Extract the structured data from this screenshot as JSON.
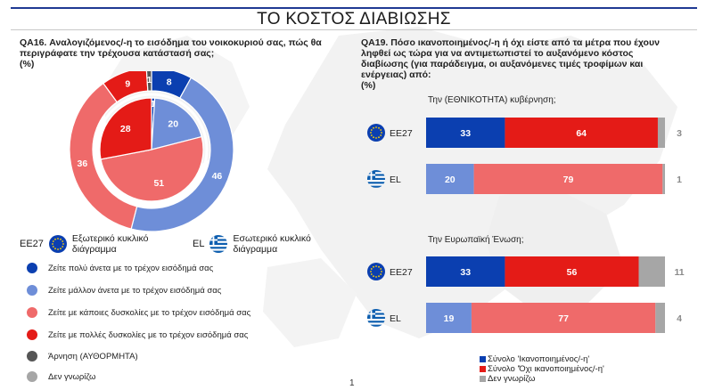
{
  "page": {
    "title": "ΤΟ ΚΟΣΤΟΣ ΔΙΑΒΙΩΣΗΣ",
    "page_number": "1"
  },
  "left": {
    "question_lines": [
      "QA16. Αναλογιζόμενος/-η το εισόδημα του νοικοκυριού σας, πώς θα",
      "περιγράφατε την τρέχουσα κατάστασή σας;",
      "(%)"
    ],
    "ring_labels": {
      "eu_code": "EE27",
      "eu_text": "Εξωτερικό κυκλικό διάγραμμα",
      "el_code": "EL",
      "el_text": "Εσωτερικό κυκλικό διάγραμμα"
    },
    "legend": [
      {
        "label": "Ζείτε πολύ άνετα με το τρέχον εισόδημά σας",
        "color": "#0b3fb0"
      },
      {
        "label": "Ζείτε μάλλον άνετα με το τρέχον εισόδημά σας",
        "color": "#6e8ed8"
      },
      {
        "label": "Ζείτε με κάποιες δυσκολίες με το τρέχον εισόδημά σας",
        "color": "#ef6a6a"
      },
      {
        "label": "Ζείτε με πολλές δυσκολίες με το τρέχον εισόδημά σας",
        "color": "#e41b17"
      },
      {
        "label": "Άρνηση (ΑΥΘΟΡΜΗΤΑ)",
        "color": "#555555"
      },
      {
        "label": "Δεν γνωρίζω",
        "color": "#a6a6a6"
      }
    ]
  },
  "right": {
    "question_lines": [
      "QA19. Πόσο ικανοποιημένος/-η ή όχι είστε από τα μέτρα που έχουν",
      "ληφθεί ως τώρα για να αντιμετωπιστεί το αυξανόμενο κόστος",
      "διαβίωσης (για παράδειγμα, οι αυξανόμενες τιμές τροφίμων και",
      "ενέργειας) από:",
      "(%)"
    ],
    "legend": [
      {
        "label": "Σύνολο 'Ικανοποιημένος/-η'",
        "color": "#0b3fb0"
      },
      {
        "label": "Σύνολο 'Όχι ικανοποιημένος/-η'",
        "color": "#e41b17"
      },
      {
        "label": "Δεν γνωρίζω",
        "color": "#a6a6a6"
      }
    ]
  },
  "colors": {
    "very_comfortable": "#0b3fb0",
    "fairly_comfortable": "#6e8ed8",
    "some_difficulties": "#ef6a6a",
    "many_difficulties": "#e41b17",
    "refusal": "#555555",
    "dont_know": "#a6a6a6",
    "satisfied_eu": "#0b3fb0",
    "satisfied_el": "#6e8ed8",
    "not_satisfied_eu": "#e41b17",
    "not_satisfied_el": "#ef6a6a",
    "title_rule": "#1f3a93"
  },
  "chart_data": [
    {
      "type": "pie",
      "subtype": "double-donut",
      "series": [
        {
          "name": "EE27",
          "ring": "outer",
          "categories": [
            "Ζείτε πολύ άνετα με το τρέχον εισόδημά σας",
            "Ζείτε μάλλον άνετα με το τρέχον εισόδημά σας",
            "Ζείτε με κάποιες δυσκολίες με το τρέχον εισόδημά σας",
            "Ζείτε με πολλές δυσκολίες με το τρέχον εισόδημά σας",
            "Άρνηση (ΑΥΘΟΡΜΗΤΑ)",
            "Δεν γνωρίζω"
          ],
          "values": [
            8,
            46,
            36,
            9,
            1,
            0
          ],
          "labels": [
            "8",
            "46",
            "36",
            "9",
            "1",
            ""
          ]
        },
        {
          "name": "EL",
          "ring": "inner",
          "categories": [
            "Ζείτε πολύ άνετα με το τρέχον εισόδημά σας",
            "Ζείτε μάλλον άνετα με το τρέχον εισόδημά σας",
            "Ζείτε με κάποιες δυσκολίες με το τρέχον εισόδημά σας",
            "Ζείτε με πολλές δυσκολίες με το τρέχον εισόδημά σας",
            "Άρνηση (ΑΥΘΟΡΜΗΤΑ)",
            "Δεν γνωρίζω"
          ],
          "values": [
            1,
            20,
            51,
            28,
            0,
            0
          ],
          "labels": [
            "1",
            "20",
            "51",
            "28",
            "",
            ""
          ]
        }
      ]
    },
    {
      "type": "bar",
      "orientation": "horizontal",
      "stacked": true,
      "xlim": [
        0,
        100
      ],
      "groups": [
        {
          "title": "Την (ΕΘΝΙΚΟΤΗΤΑ) κυβέρνηση;",
          "rows": [
            {
              "name": "EE27",
              "flag": "eu-flag",
              "values": [
                33,
                64,
                3
              ]
            },
            {
              "name": "EL",
              "flag": "greece-flag",
              "values": [
                20,
                79,
                1
              ]
            }
          ]
        },
        {
          "title": "Την Ευρωπαϊκή Ένωση;",
          "rows": [
            {
              "name": "EE27",
              "flag": "eu-flag",
              "values": [
                33,
                56,
                11
              ]
            },
            {
              "name": "EL",
              "flag": "greece-flag",
              "values": [
                19,
                77,
                4
              ]
            }
          ]
        }
      ],
      "series": [
        {
          "name": "Σύνολο 'Ικανοποιημένος/-η'"
        },
        {
          "name": "Σύνολο 'Όχι ικανοποιημένος/-η'"
        },
        {
          "name": "Δεν γνωρίζω"
        }
      ]
    }
  ]
}
